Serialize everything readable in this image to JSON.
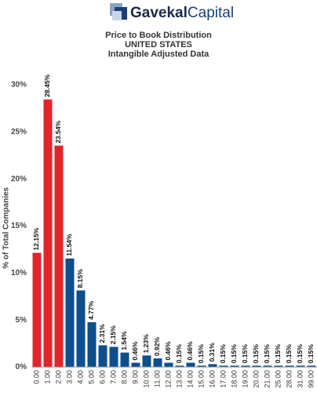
{
  "logo": {
    "part1": "Gavekal",
    "part2": "Capital"
  },
  "chart_data": {
    "type": "bar",
    "title": "Price to Book Distribution",
    "subtitle": "UNITED STATES",
    "subtitle2": "Intangible Adjusted Data",
    "y_label": "% of Total Companies",
    "categories": [
      "0.00",
      "1.00",
      "2.00",
      "3.00",
      "4.00",
      "5.00",
      "6.00",
      "7.00",
      "8.00",
      "9.00",
      "10.00",
      "11.00",
      "12.00",
      "13.00",
      "14.00",
      "15.00",
      "16.00",
      "17.00",
      "18.00",
      "19.00",
      "20.00",
      "21.00",
      "25.00",
      "28.00",
      "31.00",
      "99.00"
    ],
    "values": [
      12.15,
      28.45,
      23.54,
      11.54,
      8.15,
      4.77,
      2.31,
      2.15,
      1.54,
      0.46,
      1.23,
      0.92,
      0.46,
      0.15,
      0.46,
      0.15,
      0.31,
      0.15,
      0.15,
      0.15,
      0.15,
      0.15,
      0.15,
      0.15,
      0.15,
      0.15
    ],
    "value_labels": [
      "12.15%",
      "28.45%",
      "23.54%",
      "11.54%",
      "8.15%",
      "4.77%",
      "2.31%",
      "2.15%",
      "1.54%",
      "0.46%",
      "1.23%",
      "0.92%",
      "0.46%",
      "0.15%",
      "0.46%",
      "0.15%",
      "0.31%",
      "0.15%",
      "0.15%",
      "0.15%",
      "0.15%",
      "0.15%",
      "0.15%",
      "0.15%",
      "0.15%",
      "0.15%"
    ],
    "colors": [
      "#e2242b",
      "#e2242b",
      "#e2242b",
      "#0d4f8b",
      "#0d4f8b",
      "#0d4f8b",
      "#0d4f8b",
      "#0d4f8b",
      "#0d4f8b",
      "#0d4f8b",
      "#0d4f8b",
      "#0d4f8b",
      "#0d4f8b",
      "#0d4f8b",
      "#0d4f8b",
      "#0d4f8b",
      "#0d4f8b",
      "#0d4f8b",
      "#0d4f8b",
      "#0d4f8b",
      "#0d4f8b",
      "#0d4f8b",
      "#0d4f8b",
      "#0d4f8b",
      "#0d4f8b",
      "#0d4f8b"
    ],
    "ylim": [
      0,
      30
    ],
    "yticks": [
      {
        "value": 0,
        "label": "0%"
      },
      {
        "value": 5,
        "label": "5%"
      },
      {
        "value": 10,
        "label": "10%"
      },
      {
        "value": 15,
        "label": "15%"
      },
      {
        "value": 20,
        "label": "20%"
      },
      {
        "value": 25,
        "label": "25%"
      },
      {
        "value": 30,
        "label": "30%"
      }
    ]
  }
}
